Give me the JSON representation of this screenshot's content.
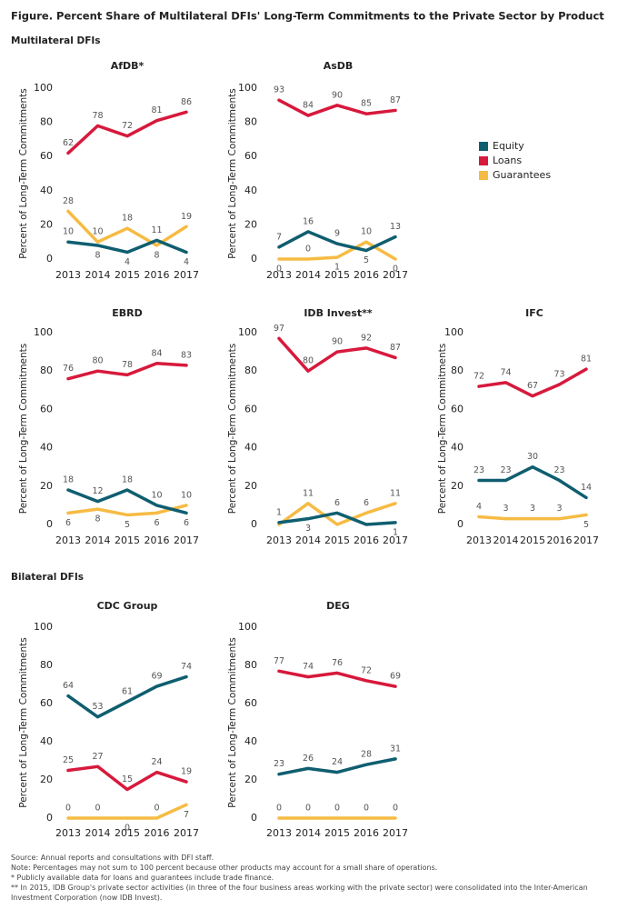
{
  "title": "Figure. Percent Share of Multilateral DFIs' Long-Term Commitments to the Private Sector by Product",
  "sections": [
    "Multilateral DFIs",
    "Bilateral DFIs"
  ],
  "chart_data": [
    {
      "type": "line",
      "title": "AfDB*",
      "y_label": "Percent of Long-Term Commitments",
      "categories": [
        "2013",
        "2014",
        "2015",
        "2016",
        "2017"
      ],
      "ylim": [
        0,
        100
      ],
      "yticks": [
        0,
        20,
        40,
        60,
        80,
        100
      ],
      "series": [
        {
          "name": "Equity",
          "color": "#0f5e70",
          "values": [
            10,
            8,
            4,
            11,
            4
          ]
        },
        {
          "name": "Loans",
          "color": "#d7193c",
          "values": [
            62,
            78,
            72,
            81,
            86
          ]
        },
        {
          "name": "Guarantees",
          "color": "#f6bb44",
          "values": [
            28,
            10,
            18,
            8,
            19
          ]
        }
      ]
    },
    {
      "type": "line",
      "title": "AsDB",
      "y_label": "Percent of Long-Term Commitments",
      "categories": [
        "2013",
        "2014",
        "2015",
        "2016",
        "2017"
      ],
      "ylim": [
        0,
        100
      ],
      "yticks": [
        0,
        20,
        40,
        60,
        80,
        100
      ],
      "series": [
        {
          "name": "Equity",
          "color": "#0f5e70",
          "values": [
            7,
            16,
            9,
            5,
            13
          ]
        },
        {
          "name": "Loans",
          "color": "#d7193c",
          "values": [
            93,
            84,
            90,
            85,
            87
          ]
        },
        {
          "name": "Guarantees",
          "color": "#f6bb44",
          "values": [
            0,
            0,
            1,
            10,
            0
          ]
        }
      ]
    },
    {
      "type": "line",
      "title": "EBRD",
      "y_label": "Percent of Long-Term Commitments",
      "categories": [
        "2013",
        "2014",
        "2015",
        "2016",
        "2017"
      ],
      "ylim": [
        0,
        100
      ],
      "yticks": [
        0,
        20,
        40,
        60,
        80,
        100
      ],
      "series": [
        {
          "name": "Equity",
          "color": "#0f5e70",
          "values": [
            18,
            12,
            18,
            10,
            6
          ]
        },
        {
          "name": "Loans",
          "color": "#d7193c",
          "values": [
            76,
            80,
            78,
            84,
            83
          ]
        },
        {
          "name": "Guarantees",
          "color": "#f6bb44",
          "values": [
            6,
            8,
            5,
            6,
            10
          ]
        }
      ]
    },
    {
      "type": "line",
      "title": "IDB Invest**",
      "y_label": "Percent of Long-Term Commitments",
      "categories": [
        "2013",
        "2014",
        "2015",
        "2016",
        "2017"
      ],
      "ylim": [
        0,
        100
      ],
      "yticks": [
        0,
        20,
        40,
        60,
        80,
        100
      ],
      "series": [
        {
          "name": "Equity",
          "color": "#0f5e70",
          "values": [
            1,
            3,
            6,
            0,
            1
          ],
          "value_labels": [
            "1",
            "3",
            "6",
            null,
            "1"
          ]
        },
        {
          "name": "Loans",
          "color": "#d7193c",
          "values": [
            97,
            80,
            90,
            92,
            87
          ]
        },
        {
          "name": "Guarantees",
          "color": "#f6bb44",
          "values": [
            0,
            11,
            0,
            6,
            11
          ],
          "value_labels": [
            null,
            "11",
            null,
            "6",
            "11"
          ]
        }
      ]
    },
    {
      "type": "line",
      "title": "IFC",
      "y_label": "Percent of Long-Term Commitments",
      "categories": [
        "2013",
        "2014",
        "2015",
        "2016",
        "2017"
      ],
      "ylim": [
        0,
        100
      ],
      "yticks": [
        0,
        20,
        40,
        60,
        80,
        100
      ],
      "series": [
        {
          "name": "Equity",
          "color": "#0f5e70",
          "values": [
            23,
            23,
            30,
            23,
            14
          ]
        },
        {
          "name": "Loans",
          "color": "#d7193c",
          "values": [
            72,
            74,
            67,
            73,
            81
          ]
        },
        {
          "name": "Guarantees",
          "color": "#f6bb44",
          "values": [
            4,
            3,
            3,
            3,
            5
          ]
        }
      ]
    },
    {
      "type": "line",
      "title": "CDC Group",
      "y_label": "Percent of Long-Term Commitments",
      "categories": [
        "2013",
        "2014",
        "2015",
        "2016",
        "2017"
      ],
      "ylim": [
        0,
        100
      ],
      "yticks": [
        0,
        20,
        40,
        60,
        80,
        100
      ],
      "series": [
        {
          "name": "Equity",
          "color": "#0f5e70",
          "values": [
            64,
            53,
            61,
            69,
            74
          ]
        },
        {
          "name": "Loans",
          "color": "#d7193c",
          "values": [
            25,
            27,
            15,
            24,
            19
          ]
        },
        {
          "name": "Guarantees",
          "color": "#f6bb44",
          "values": [
            0,
            0,
            0,
            0,
            7
          ]
        }
      ]
    },
    {
      "type": "line",
      "title": "DEG",
      "y_label": "Percent of Long-Term Commitments",
      "categories": [
        "2013",
        "2014",
        "2015",
        "2016",
        "2017"
      ],
      "ylim": [
        0,
        100
      ],
      "yticks": [
        0,
        20,
        40,
        60,
        80,
        100
      ],
      "series": [
        {
          "name": "Equity",
          "color": "#0f5e70",
          "values": [
            23,
            26,
            24,
            28,
            31
          ]
        },
        {
          "name": "Loans",
          "color": "#d7193c",
          "values": [
            77,
            74,
            76,
            72,
            69
          ]
        },
        {
          "name": "Guarantees",
          "color": "#f6bb44",
          "values": [
            0,
            0,
            0,
            0,
            0
          ]
        }
      ]
    }
  ],
  "notes": [
    "Source: Annual reports and consultations with DFI staff.",
    "Note: Percentages may not sum to 100 percent because other products may account for a small share of operations.",
    "* Publicly available data for loans and guarantees include trade finance.",
    "** In 2015, IDB Group's private sector activities (in three of the four business areas working with the private sector) were consolidated into the Inter-American Investment Corporation (now IDB Invest)."
  ]
}
